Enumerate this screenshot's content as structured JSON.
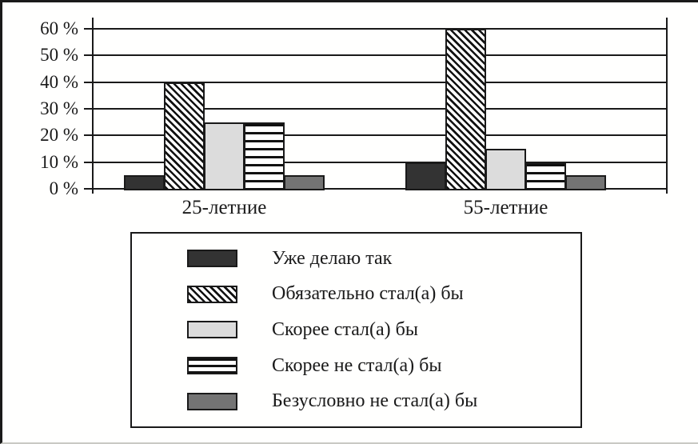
{
  "chart_data": {
    "type": "bar",
    "title": "",
    "categories": [
      "25-летние",
      "55-летние"
    ],
    "series": [
      {
        "name": "Уже делаю так",
        "pattern": "solid-dark",
        "values": [
          5,
          10
        ]
      },
      {
        "name": "Обязательно стал(а) бы",
        "pattern": "diagonal-hatch",
        "values": [
          40,
          60
        ]
      },
      {
        "name": "Скорее стал(а) бы",
        "pattern": "solid-light",
        "values": [
          25,
          15
        ]
      },
      {
        "name": "Скорее не стал(а) бы",
        "pattern": "horizontal-stripes",
        "values": [
          25,
          10
        ]
      },
      {
        "name": "Безусловно не стал(а) бы",
        "pattern": "solid-gray",
        "values": [
          5,
          5
        ]
      }
    ],
    "xlabel": "",
    "ylabel": "",
    "ylim": [
      0,
      60
    ],
    "ytick_step": 10,
    "ytick_labels": [
      "0 %",
      "10 %",
      "20 %",
      "30 %",
      "40 %",
      "50 %",
      "60 %"
    ],
    "grid": true,
    "legend_position": "boxed-below-chart"
  },
  "colors": {
    "line": "#1a1a1a",
    "bar_dark": "#333333",
    "bar_light": "#dcdcdc",
    "bar_gray": "#747474",
    "hatch_foreground": "#111111",
    "hatch_background": "#ffffff",
    "background": "#fffffe",
    "bottom_rule": "#c9c9c4"
  }
}
